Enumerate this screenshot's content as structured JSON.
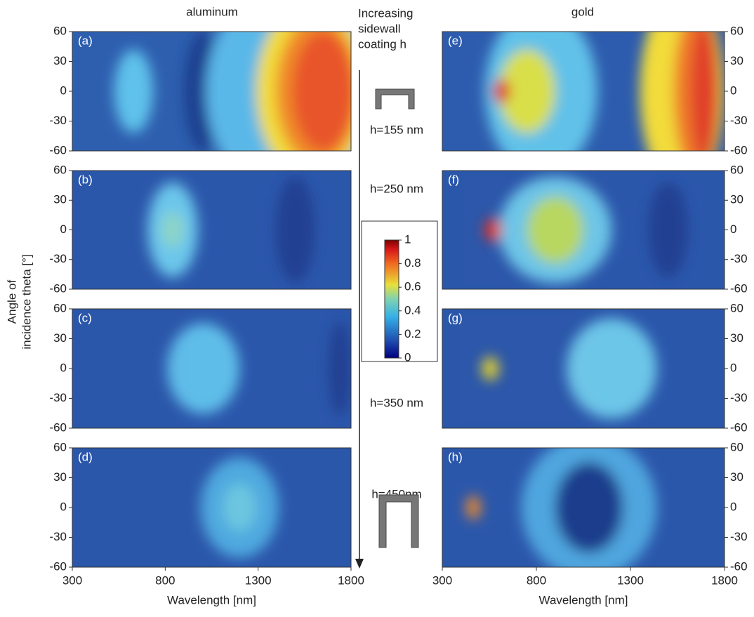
{
  "chart_data": [
    {
      "type": "heatmap",
      "label": "(a)",
      "xlim": [
        300,
        1800
      ],
      "ylim": [
        -60,
        60
      ],
      "yticks": [
        60,
        30,
        0,
        -30,
        -60
      ]
    },
    {
      "type": "heatmap",
      "label": "(b)",
      "xlim": [
        300,
        1800
      ],
      "ylim": [
        -60,
        60
      ],
      "yticks": [
        60,
        30,
        0,
        -30,
        -60
      ]
    },
    {
      "type": "heatmap",
      "label": "(c)",
      "xlim": [
        300,
        1800
      ],
      "ylim": [
        -60,
        60
      ],
      "yticks": [
        60,
        30,
        0,
        -30,
        -60
      ]
    },
    {
      "type": "heatmap",
      "label": "(d)",
      "xlim": [
        300,
        1800
      ],
      "ylim": [
        -60,
        60
      ],
      "yticks": [
        60,
        30,
        0,
        -30,
        -60
      ],
      "xticks": [
        300,
        800,
        1300,
        1800
      ],
      "xlabel": "Wavelength [nm]"
    },
    {
      "type": "heatmap",
      "label": "(e)",
      "xlim": [
        300,
        1800
      ],
      "ylim": [
        -60,
        60
      ],
      "yticks": [
        60,
        30,
        0,
        -30,
        -60
      ]
    },
    {
      "type": "heatmap",
      "label": "(f)",
      "xlim": [
        300,
        1800
      ],
      "ylim": [
        -60,
        60
      ],
      "yticks": [
        60,
        30,
        0,
        -30,
        -60
      ]
    },
    {
      "type": "heatmap",
      "label": "(g)",
      "xlim": [
        300,
        1800
      ],
      "ylim": [
        -60,
        60
      ],
      "yticks": [
        60,
        30,
        0,
        -30,
        -60
      ]
    },
    {
      "type": "heatmap",
      "label": "(h)",
      "xlim": [
        300,
        1800
      ],
      "ylim": [
        -60,
        60
      ],
      "yticks": [
        60,
        30,
        0,
        -30,
        -60
      ],
      "xticks": [
        300,
        800,
        1300,
        1800
      ],
      "xlabel": "Wavelength [nm]"
    }
  ],
  "column_titles": [
    "aluminum",
    "gold"
  ],
  "ylabel": [
    "Angle of",
    "incidence theta [°]"
  ],
  "annotation": [
    "Increasing",
    "sidewall",
    "coating h"
  ],
  "thickness_labels": [
    "h=155 nm",
    "h=250 nm",
    "h=350 nm",
    "h=450nm"
  ],
  "colorbar": {
    "ylim": [
      0,
      1
    ],
    "ticks": [
      1,
      0.8,
      0.6,
      0.4,
      0.2,
      0
    ]
  }
}
